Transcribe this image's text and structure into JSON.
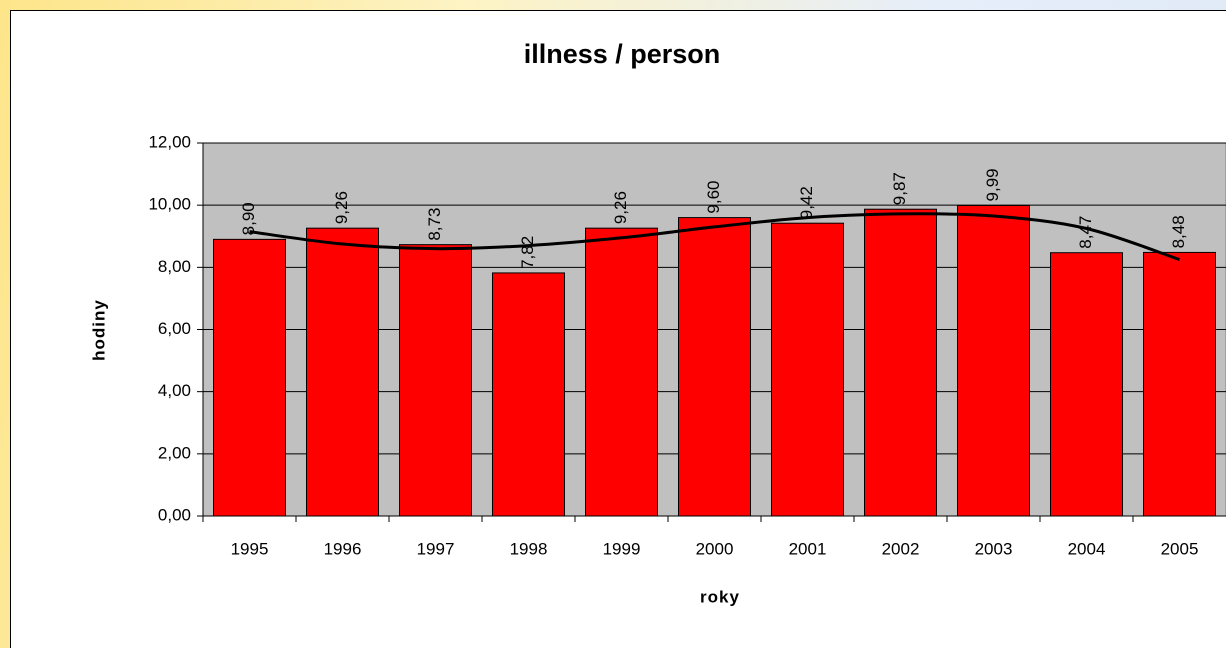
{
  "chart_data": {
    "type": "bar",
    "title": "illness / person",
    "x_label": "roky",
    "y_label": "hodiny",
    "categories": [
      "1995",
      "1996",
      "1997",
      "1998",
      "1999",
      "2000",
      "2001",
      "2002",
      "2003",
      "2004",
      "2005"
    ],
    "series": [
      {
        "type": "bar",
        "color": "#ff0000",
        "values": [
          8.9,
          9.26,
          8.73,
          7.82,
          9.26,
          9.6,
          9.42,
          9.87,
          9.99,
          8.47,
          8.48
        ],
        "value_labels": [
          "8,90",
          "9,26",
          "8,73",
          "7,82",
          "9,26",
          "9,60",
          "9,42",
          "9,87",
          "9,99",
          "8,47",
          "8,48"
        ]
      },
      {
        "type": "line",
        "color": "#000000",
        "values": [
          9.15,
          8.75,
          8.6,
          8.7,
          8.95,
          9.3,
          9.6,
          9.72,
          9.65,
          9.25,
          8.25
        ]
      }
    ],
    "ylim": [
      0,
      12
    ],
    "yticks": [
      {
        "value": 0,
        "label": "0,00"
      },
      {
        "value": 2,
        "label": "2,00"
      },
      {
        "value": 4,
        "label": "4,00"
      },
      {
        "value": 6,
        "label": "6,00"
      },
      {
        "value": 8,
        "label": "8,00"
      },
      {
        "value": 10,
        "label": "10,00"
      },
      {
        "value": 12,
        "label": "12,00"
      }
    ],
    "grid": true,
    "plot_background": "#c0c0c0"
  }
}
